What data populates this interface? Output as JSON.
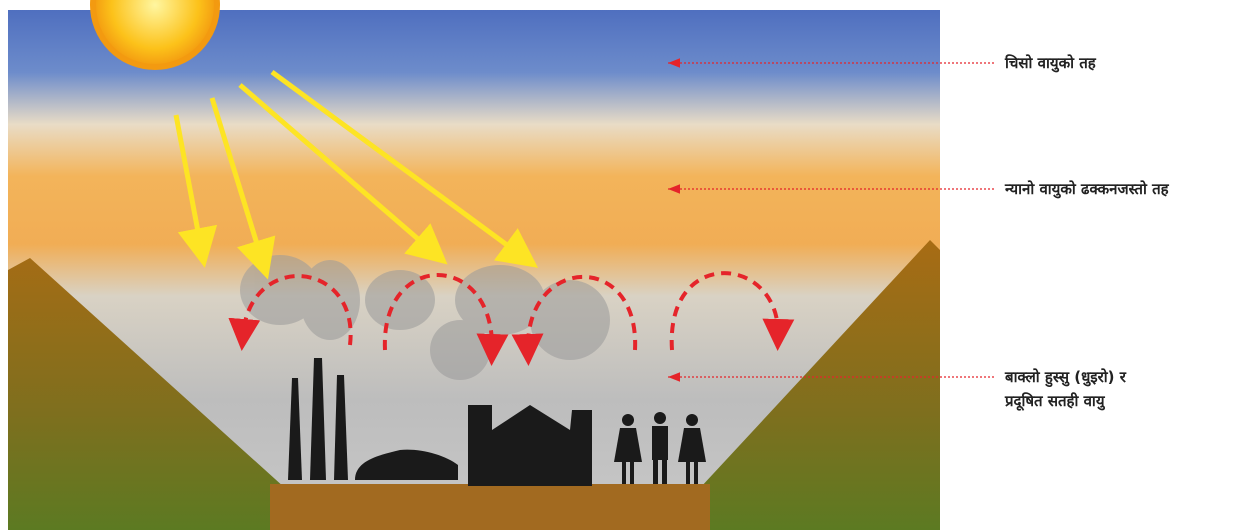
{
  "labels": [
    {
      "lines": [
        "चिसो वायुको तह"
      ]
    },
    {
      "lines": [
        "न्यानो वायुको ढक्कनजस्तो तह"
      ]
    },
    {
      "lines": [
        "बाक्लो हुस्सु (धुइरो) र",
        "प्रदूषित सतही वायु"
      ]
    }
  ]
}
